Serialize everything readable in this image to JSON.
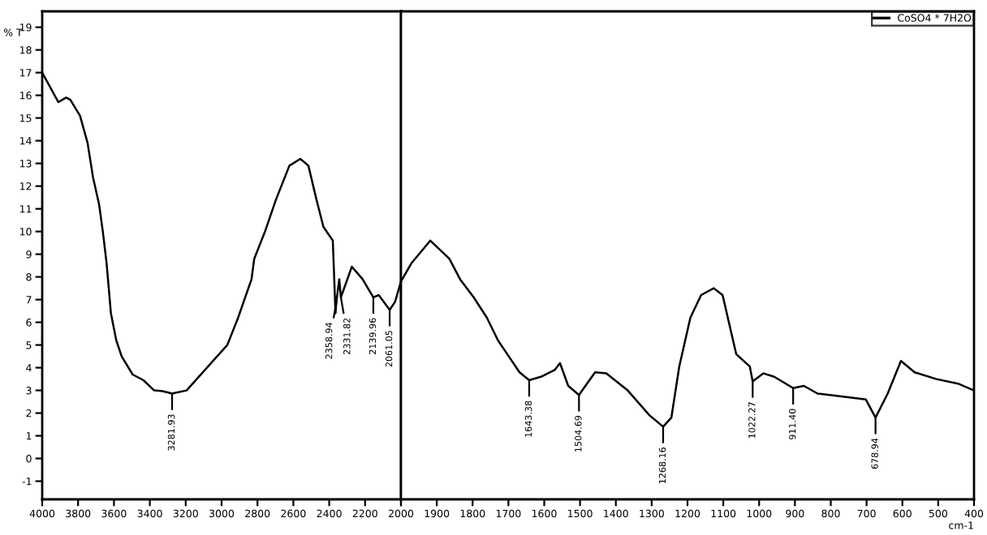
{
  "chart_data": [
    {
      "type": "line",
      "ylabel": "% T",
      "xlim": [
        4000,
        2000
      ],
      "xticks": [
        4000,
        3800,
        3600,
        3400,
        3200,
        3000,
        2800,
        2600,
        2400,
        2200,
        2000
      ],
      "ylim": [
        -1.8,
        19.7
      ],
      "yticks": [
        -1,
        0,
        1,
        2,
        3,
        4,
        5,
        6,
        7,
        8,
        9,
        10,
        11,
        12,
        13,
        14,
        15,
        16,
        17,
        18,
        19
      ],
      "grid": false,
      "marker": "none",
      "line_style": "solid",
      "series": [
        {
          "color": "#000000",
          "x": [
            4000,
            3910,
            3867,
            3843,
            3789,
            3747,
            3717,
            3683,
            3662,
            3641,
            3617,
            3587,
            3557,
            3496,
            3436,
            3376,
            3330,
            3276,
            3195,
            3104,
            2968,
            2908,
            2833,
            2818,
            2758,
            2697,
            2622,
            2561,
            2516,
            2471,
            2432,
            2380,
            2365,
            2360,
            2344,
            2335,
            2274,
            2214,
            2154,
            2124,
            2063,
            2033,
            2000
          ],
          "values": [
            17.0,
            15.7,
            15.9,
            15.8,
            15.1,
            13.9,
            12.4,
            11.2,
            10.0,
            8.6,
            6.4,
            5.2,
            4.5,
            3.7,
            3.45,
            3.0,
            2.97,
            2.86,
            3.0,
            3.8,
            5.0,
            6.2,
            7.9,
            8.8,
            10.0,
            11.4,
            12.9,
            13.2,
            12.9,
            11.4,
            10.2,
            9.6,
            6.4,
            6.9,
            7.9,
            7.1,
            8.45,
            7.9,
            7.1,
            7.2,
            6.55,
            6.9,
            7.8
          ]
        }
      ],
      "annotations": [
        {
          "text": "3281.93",
          "x": 3276,
          "y": 2.86
        },
        {
          "text": "2358.94",
          "x": 2360,
          "y": 6.9
        },
        {
          "text": "2331.82",
          "x": 2335,
          "y": 7.1
        },
        {
          "text": "2139.96",
          "x": 2154,
          "y": 7.1
        },
        {
          "text": "2061.05",
          "x": 2063,
          "y": 6.55
        }
      ]
    },
    {
      "type": "line",
      "xlabel": "cm-1",
      "xlim": [
        2000,
        400
      ],
      "xticks": [
        {
          "value": 2000,
          "label": null
        },
        1900,
        1800,
        1700,
        1600,
        1500,
        1400,
        1300,
        1200,
        1100,
        1000,
        900,
        800,
        700,
        600,
        500,
        400
      ],
      "ylim": [
        -1.8,
        19.7
      ],
      "tick_labels": "x",
      "grid": false,
      "legend": "top right",
      "marker": "none",
      "line_style": "solid",
      "series": [
        {
          "name": "CoSO4 * 7H2O",
          "color": "#000000",
          "x": [
            2000,
            1971,
            1918,
            1865,
            1835,
            1797,
            1760,
            1729,
            1699,
            1669,
            1642,
            1609,
            1571,
            1556,
            1533,
            1503,
            1458,
            1427,
            1367,
            1306,
            1268,
            1245,
            1223,
            1192,
            1162,
            1127,
            1102,
            1064,
            1026,
            1018,
            988,
            958,
            905,
            875,
            837,
            702,
            675,
            641,
            604,
            566,
            505,
            445,
            415,
            400
          ],
          "values": [
            7.8,
            8.6,
            9.6,
            8.8,
            7.9,
            7.1,
            6.2,
            5.2,
            4.5,
            3.8,
            3.45,
            3.6,
            3.9,
            4.2,
            3.2,
            2.8,
            3.8,
            3.75,
            3.0,
            1.9,
            1.4,
            1.8,
            4.05,
            6.2,
            7.2,
            7.5,
            7.2,
            4.6,
            4.05,
            3.4,
            3.75,
            3.6,
            3.1,
            3.2,
            2.86,
            2.6,
            1.8,
            2.86,
            4.3,
            3.8,
            3.5,
            3.3,
            3.1,
            3.0
          ]
        }
      ],
      "annotations": [
        {
          "text": "1643.38",
          "x": 1642,
          "y": 3.45
        },
        {
          "text": "1504.69",
          "x": 1503,
          "y": 2.8
        },
        {
          "text": "1268.16",
          "x": 1268,
          "y": 1.4
        },
        {
          "text": "1022.27",
          "x": 1018,
          "y": 3.4
        },
        {
          "text": "911.40",
          "x": 905,
          "y": 3.1
        },
        {
          "text": "678.94",
          "x": 675,
          "y": 1.8
        }
      ]
    }
  ]
}
